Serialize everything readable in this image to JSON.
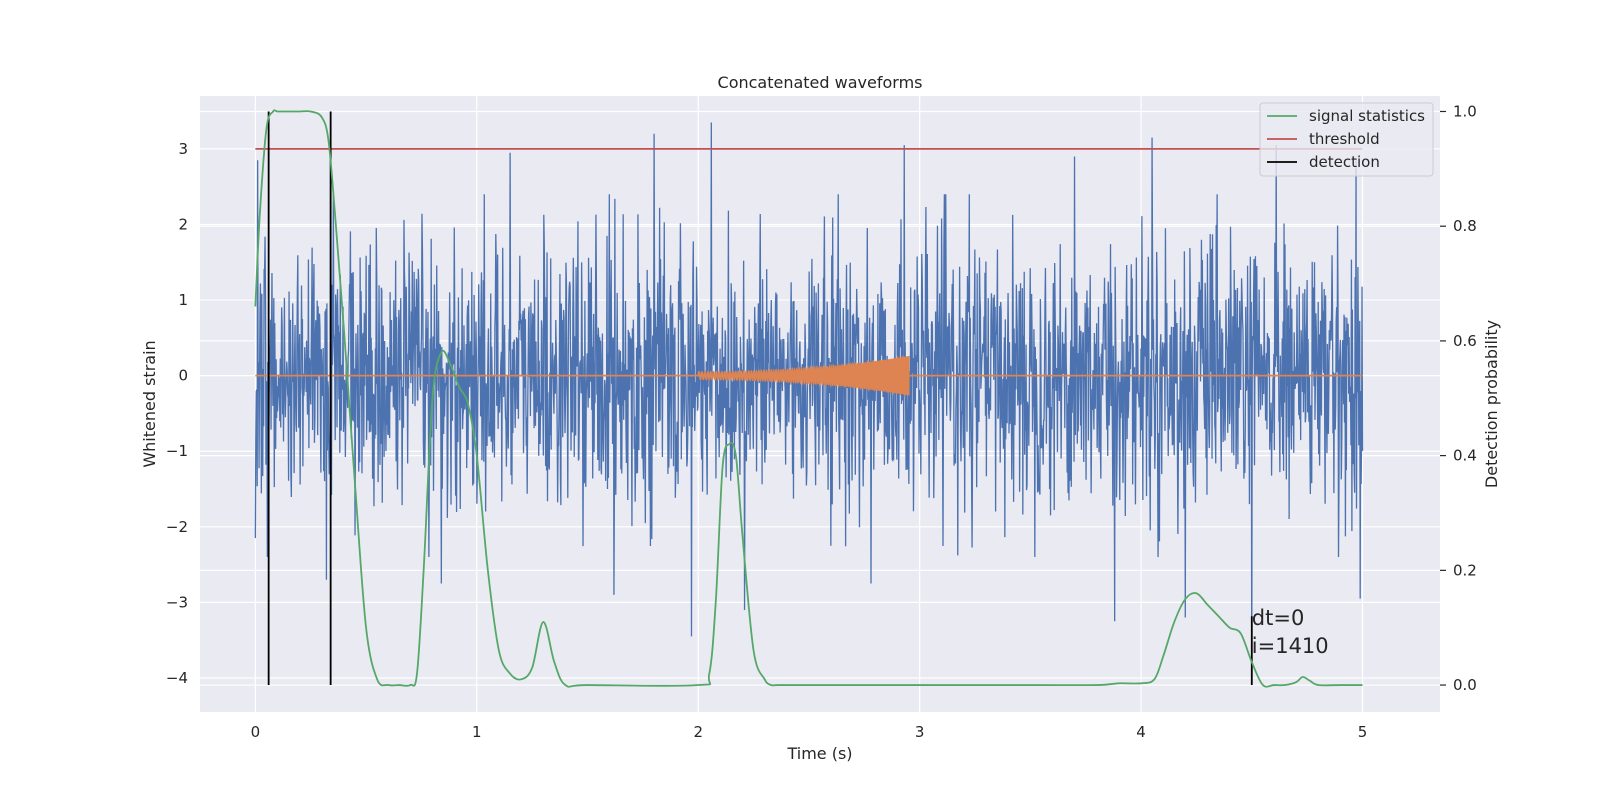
{
  "chart_data": {
    "type": "line",
    "title": "Concatenated waveforms",
    "xlabel": "Time (s)",
    "ylabel": "Whitened strain",
    "ylabel_right": "Detection probability",
    "xlim": [
      -0.25,
      5.35
    ],
    "ylim": [
      -4.45,
      3.7
    ],
    "ylim_right": [
      -0.047,
      1.027
    ],
    "xticks": [
      0,
      1,
      2,
      3,
      4,
      5
    ],
    "xtick_labels": [
      "0",
      "1",
      "2",
      "3",
      "4",
      "5"
    ],
    "yticks": [
      -4,
      -3,
      -2,
      -1,
      0,
      1,
      2,
      3
    ],
    "ytick_labels": [
      "−4",
      "−3",
      "−2",
      "−1",
      "0",
      "1",
      "2",
      "3"
    ],
    "yticks_right": [
      0.0,
      0.2,
      0.4,
      0.6,
      0.8,
      1.0
    ],
    "ytick_right_labels": [
      "0.0",
      "0.2",
      "0.4",
      "0.6",
      "0.8",
      "1.0"
    ],
    "grid": true,
    "legend_position": "top-right",
    "colors": {
      "background": "#eaeaf2",
      "grid": "#ffffff",
      "whitened_strain": "#4c72b0",
      "injected_waveform": "#dd8452",
      "signal_statistics": "#55a868",
      "threshold": "#c44e52",
      "detection": "#000000"
    },
    "series": [
      {
        "name": "signal statistics",
        "axis": "right",
        "x": [
          0.0,
          0.02,
          0.05,
          0.08,
          0.1,
          0.15,
          0.2,
          0.25,
          0.3,
          0.33,
          0.36,
          0.4,
          0.45,
          0.5,
          0.55,
          0.6,
          0.65,
          0.7,
          0.73,
          0.76,
          0.8,
          0.84,
          0.88,
          0.92,
          0.96,
          1.0,
          1.05,
          1.1,
          1.15,
          1.2,
          1.25,
          1.3,
          1.35,
          1.4,
          1.5,
          2.0,
          2.05,
          2.08,
          2.11,
          2.14,
          2.17,
          2.2,
          2.25,
          2.3,
          2.33,
          2.36,
          2.5,
          3.0,
          3.5,
          3.8,
          3.9,
          4.0,
          4.06,
          4.1,
          4.15,
          4.2,
          4.25,
          4.3,
          4.35,
          4.4,
          4.45,
          4.5,
          4.55,
          4.6,
          4.65,
          4.7,
          4.73,
          4.76,
          4.8,
          4.9,
          5.0
        ],
        "y": [
          0.66,
          0.82,
          0.97,
          1.0,
          1.0,
          1.0,
          1.0,
          1.0,
          0.99,
          0.95,
          0.82,
          0.62,
          0.35,
          0.1,
          0.01,
          0.0,
          0.0,
          0.0,
          0.02,
          0.2,
          0.5,
          0.58,
          0.56,
          0.52,
          0.49,
          0.4,
          0.2,
          0.06,
          0.02,
          0.01,
          0.03,
          0.11,
          0.04,
          0.0,
          0.0,
          0.0,
          0.02,
          0.15,
          0.38,
          0.42,
          0.4,
          0.26,
          0.06,
          0.01,
          0.0,
          0.0,
          0.0,
          0.0,
          0.0,
          0.0,
          0.003,
          0.003,
          0.01,
          0.05,
          0.11,
          0.15,
          0.16,
          0.14,
          0.12,
          0.1,
          0.09,
          0.04,
          0.0,
          0.0,
          0.0,
          0.005,
          0.014,
          0.008,
          0.0,
          0.0,
          0.0
        ]
      },
      {
        "name": "threshold",
        "axis": "left",
        "x": [
          0.0,
          5.0
        ],
        "y": [
          3.0,
          3.0
        ]
      },
      {
        "name": "detection",
        "axis": "right",
        "type": "vertical-lines",
        "x": [
          0.06,
          0.34,
          4.5
        ],
        "y_range": [
          [
            0.0,
            1.0
          ],
          [
            0.0,
            1.0
          ],
          [
            0.0,
            0.12
          ]
        ]
      },
      {
        "axis": "left",
        "type": "noise",
        "x_range": [
          0.0,
          5.0
        ],
        "typical_amplitude": [
          -1.5,
          2.0
        ],
        "peaks": [
          {
            "x": 0.01,
            "y": 2.85
          },
          {
            "x": 0.34,
            "y": 3.1
          },
          {
            "x": 1.8,
            "y": 3.2
          },
          {
            "x": 2.06,
            "y": 3.35
          },
          {
            "x": 2.93,
            "y": 3.05
          },
          {
            "x": 4.05,
            "y": 3.15
          },
          {
            "x": 4.61,
            "y": 3.05
          },
          {
            "x": 4.97,
            "y": 2.85
          },
          {
            "x": 1.15,
            "y": 2.95
          },
          {
            "x": 3.7,
            "y": 2.9
          }
        ],
        "troughs": [
          {
            "x": 0.0,
            "y": -2.15
          },
          {
            "x": 0.32,
            "y": -2.7
          },
          {
            "x": 0.84,
            "y": -2.75
          },
          {
            "x": 1.62,
            "y": -2.9
          },
          {
            "x": 1.97,
            "y": -3.45
          },
          {
            "x": 2.21,
            "y": -3.1
          },
          {
            "x": 2.78,
            "y": -2.75
          },
          {
            "x": 3.88,
            "y": -3.25
          },
          {
            "x": 4.2,
            "y": -3.2
          },
          {
            "x": 4.5,
            "y": -4.05
          },
          {
            "x": 4.99,
            "y": -2.95
          }
        ]
      },
      {
        "axis": "left",
        "type": "chirp",
        "x_range": [
          2.0,
          2.95
        ],
        "amplitude_start": 0.05,
        "amplitude_end": 0.26,
        "cycles": 70,
        "baseline_x": [
          0.0,
          5.0
        ],
        "baseline_y": 0.0
      }
    ],
    "annotations": [
      {
        "text": "dt=0",
        "x": 4.5,
        "y": -3.3
      },
      {
        "text": "i=1410",
        "x": 4.5,
        "y": -3.67
      }
    ]
  }
}
